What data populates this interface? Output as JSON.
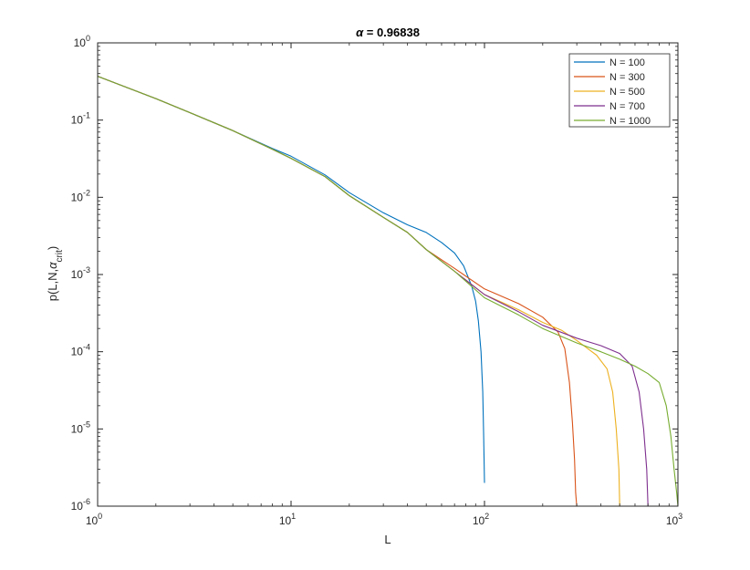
{
  "chart_data": {
    "type": "line",
    "title": {
      "symbol": "α",
      "text": " = 0.96838"
    },
    "xlabel": "L",
    "ylabel": {
      "main": "p(L,N,",
      "symbol": "α",
      "sub": "crit",
      "close": ")"
    },
    "xscale": "log",
    "yscale": "log",
    "xlim": [
      1,
      1000
    ],
    "ylim": [
      1e-06,
      1
    ],
    "grid": false,
    "legend_position": "top-right",
    "x_ticks": [
      {
        "base": "10",
        "exp": "0",
        "value": 1
      },
      {
        "base": "10",
        "exp": "1",
        "value": 10
      },
      {
        "base": "10",
        "exp": "2",
        "value": 100
      },
      {
        "base": "10",
        "exp": "3",
        "value": 1000
      }
    ],
    "y_ticks": [
      {
        "base": "10",
        "exp": "0",
        "value": 1
      },
      {
        "base": "10",
        "exp": "-1",
        "value": 0.1
      },
      {
        "base": "10",
        "exp": "-2",
        "value": 0.01
      },
      {
        "base": "10",
        "exp": "-3",
        "value": 0.001
      },
      {
        "base": "10",
        "exp": "-4",
        "value": 0.0001
      },
      {
        "base": "10",
        "exp": "-5",
        "value": 1e-05
      },
      {
        "base": "10",
        "exp": "-6",
        "value": 1e-06
      }
    ],
    "series": [
      {
        "name": "N = 100",
        "color": "#0072BD",
        "x": [
          1,
          2,
          3,
          5,
          8,
          10,
          15,
          20,
          30,
          40,
          50,
          60,
          70,
          78,
          82,
          86,
          90,
          93,
          96,
          98,
          99,
          100
        ],
        "y": [
          0.37,
          0.19,
          0.125,
          0.073,
          0.043,
          0.034,
          0.0195,
          0.0115,
          0.0063,
          0.0044,
          0.0035,
          0.0026,
          0.0019,
          0.0013,
          0.00095,
          0.0007,
          0.00045,
          0.00025,
          0.0001,
          3e-05,
          8e-06,
          2e-06
        ]
      },
      {
        "name": "N = 300",
        "color": "#D95319",
        "x": [
          1,
          2,
          3,
          5,
          8,
          10,
          15,
          20,
          30,
          40,
          50,
          70,
          100,
          150,
          200,
          240,
          260,
          275,
          285,
          292,
          296,
          300
        ],
        "y": [
          0.37,
          0.19,
          0.125,
          0.073,
          0.042,
          0.032,
          0.0185,
          0.0105,
          0.0055,
          0.0035,
          0.0021,
          0.0012,
          0.00065,
          0.00042,
          0.00028,
          0.00018,
          0.00011,
          4e-05,
          1.2e-05,
          4e-06,
          1.5e-06,
          1e-06
        ]
      },
      {
        "name": "N = 500",
        "color": "#EDB120",
        "x": [
          1,
          2,
          3,
          5,
          8,
          10,
          15,
          20,
          30,
          40,
          50,
          70,
          100,
          150,
          200,
          250,
          300,
          380,
          430,
          460,
          480,
          495,
          500
        ],
        "y": [
          0.37,
          0.19,
          0.125,
          0.073,
          0.042,
          0.032,
          0.0185,
          0.0105,
          0.0055,
          0.0035,
          0.0021,
          0.0011,
          0.00055,
          0.00035,
          0.00024,
          0.00019,
          0.00014,
          9e-05,
          6e-05,
          3e-05,
          1e-05,
          3e-06,
          1e-06
        ]
      },
      {
        "name": "N = 700",
        "color": "#7E2F8E",
        "x": [
          1,
          2,
          3,
          5,
          8,
          10,
          15,
          20,
          30,
          40,
          50,
          70,
          100,
          150,
          200,
          300,
          400,
          500,
          580,
          630,
          665,
          690,
          700
        ],
        "y": [
          0.37,
          0.19,
          0.125,
          0.073,
          0.042,
          0.032,
          0.0185,
          0.0105,
          0.0055,
          0.0035,
          0.0021,
          0.0011,
          0.00055,
          0.00033,
          0.00022,
          0.00015,
          0.00012,
          9.5e-05,
          6.5e-05,
          3e-05,
          1e-05,
          3e-06,
          1e-06
        ]
      },
      {
        "name": "N = 1000",
        "color": "#77AC30",
        "x": [
          1,
          2,
          3,
          5,
          8,
          10,
          15,
          20,
          30,
          40,
          50,
          70,
          100,
          150,
          200,
          300,
          400,
          500,
          600,
          700,
          800,
          870,
          920,
          955,
          985,
          1000
        ],
        "y": [
          0.37,
          0.19,
          0.125,
          0.073,
          0.042,
          0.032,
          0.0185,
          0.0105,
          0.0055,
          0.0035,
          0.0021,
          0.0011,
          0.0005,
          0.0003,
          0.0002,
          0.00013,
          0.0001,
          8e-05,
          6.5e-05,
          5.2e-05,
          4e-05,
          2e-05,
          8e-06,
          3e-06,
          1.5e-06,
          1e-06
        ]
      }
    ]
  }
}
